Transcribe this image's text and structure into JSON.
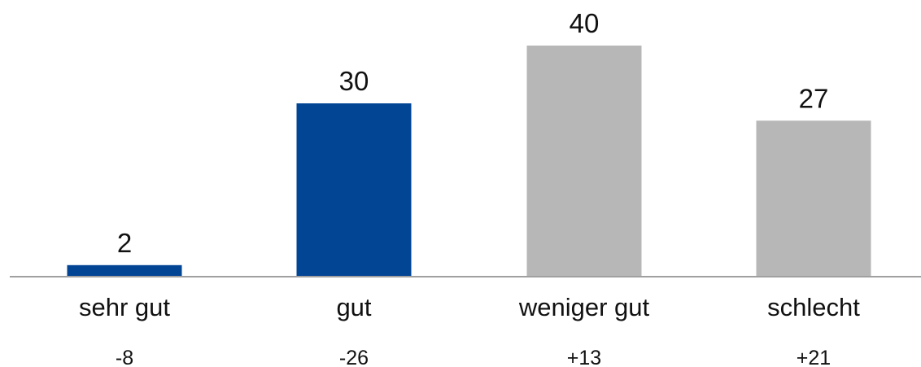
{
  "chart_data": {
    "type": "bar",
    "categories": [
      "sehr gut",
      "gut",
      "weniger gut",
      "schlecht"
    ],
    "values": [
      2,
      30,
      40,
      27
    ],
    "changes": [
      "-8",
      "-26",
      "+13",
      "+21"
    ],
    "colors": [
      "#034595",
      "#034595",
      "#b7b7b7",
      "#b7b7b7"
    ],
    "axis_color": "#a0a0a0",
    "ylim": [
      0,
      40
    ],
    "title": "",
    "xlabel": "",
    "ylabel": "",
    "grid": false,
    "legend": "none"
  }
}
